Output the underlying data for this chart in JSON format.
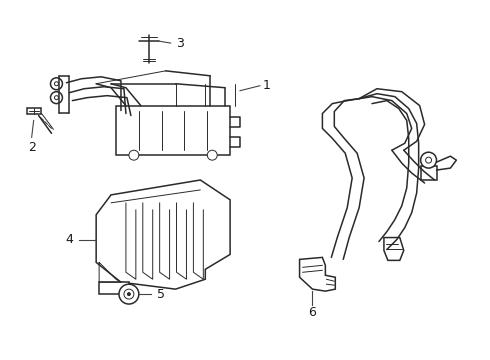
{
  "background_color": "#ffffff",
  "line_color": "#2a2a2a",
  "label_color": "#1a1a1a",
  "figsize": [
    4.9,
    3.6
  ],
  "dpi": 100
}
